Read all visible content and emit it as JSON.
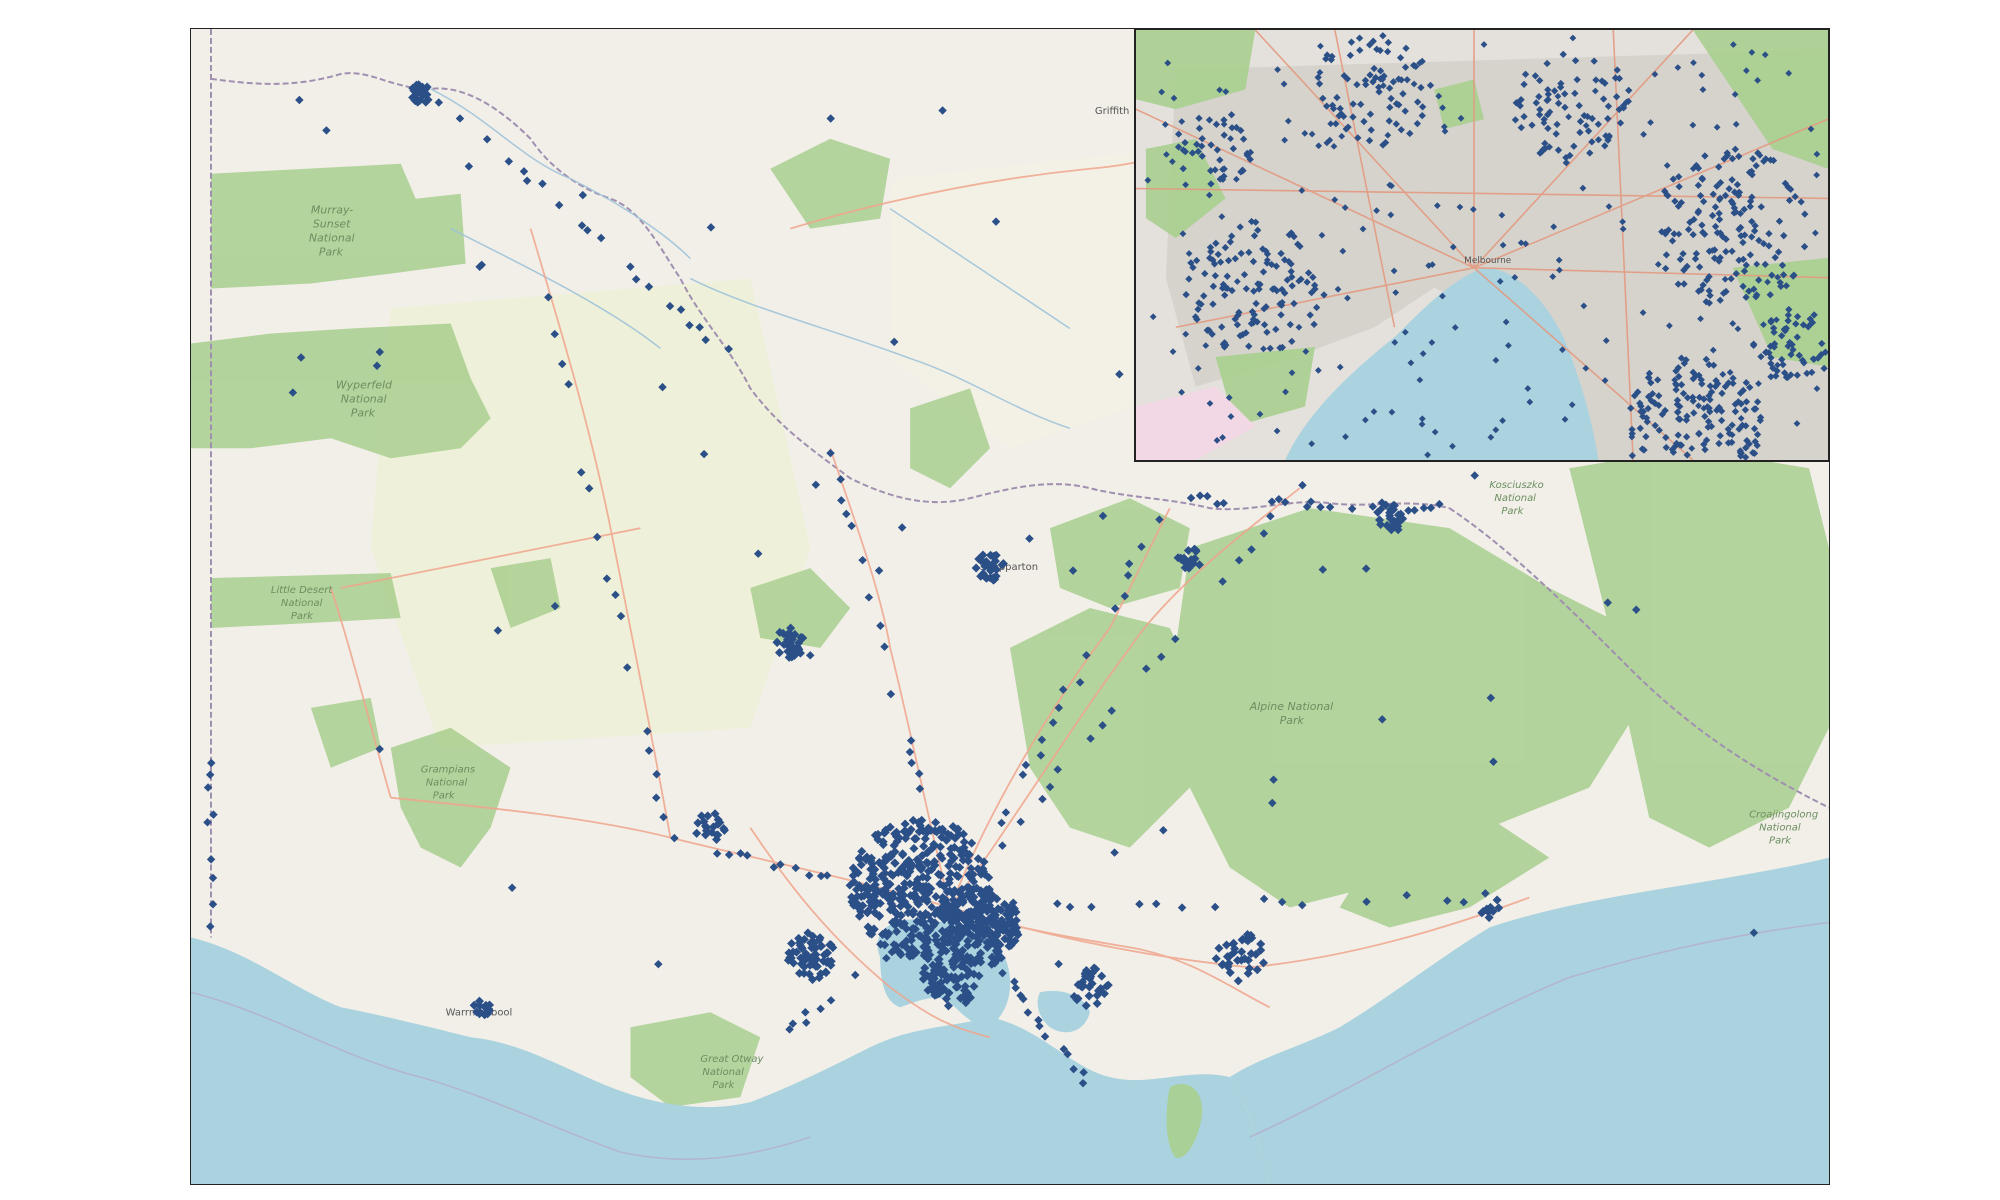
{
  "map": {
    "region": "Victoria",
    "colors": {
      "land": "#f2efe9",
      "sea": "#aad3df",
      "park": "#a9cf8f",
      "farmland": "#eef0d5",
      "road": "#f0a58c",
      "border": "#a08fb0",
      "river": "#9ec3d9",
      "urban": "#d6d2cc",
      "marker": "#2b4f87"
    },
    "labels": {
      "murray_sunset": "Murray-Sunset National Park",
      "murray_sunset_l1": "Murray-",
      "murray_sunset_l2": "Sunset",
      "murray_sunset_l3": "National",
      "murray_sunset_l4": "Park",
      "wyperfeld_l1": "Wyperfeld",
      "wyperfeld_l2": "National",
      "wyperfeld_l3": "Park",
      "little_desert_l1": "Little Desert",
      "little_desert_l2": "National",
      "little_desert_l3": "Park",
      "grampians_l1": "Grampians",
      "grampians_l2": "National",
      "grampians_l3": "Park",
      "alpine_l1": "Alpine National",
      "alpine_l2": "Park",
      "kosciuszko_l1": "Kosciuszko",
      "kosciuszko_l2": "National",
      "kosciuszko_l3": "Park",
      "croajingolong_l1": "Croajingolong",
      "croajingolong_l2": "National",
      "croajingolong_l3": "Park",
      "great_otway_l1": "Great Otway",
      "great_otway_l2": "National",
      "great_otway_l3": "Park",
      "warrnambool": "Warrnambool",
      "shepparton": "Shepparton",
      "griffith": "Griffith",
      "melbourne": "Melbourne"
    }
  }
}
